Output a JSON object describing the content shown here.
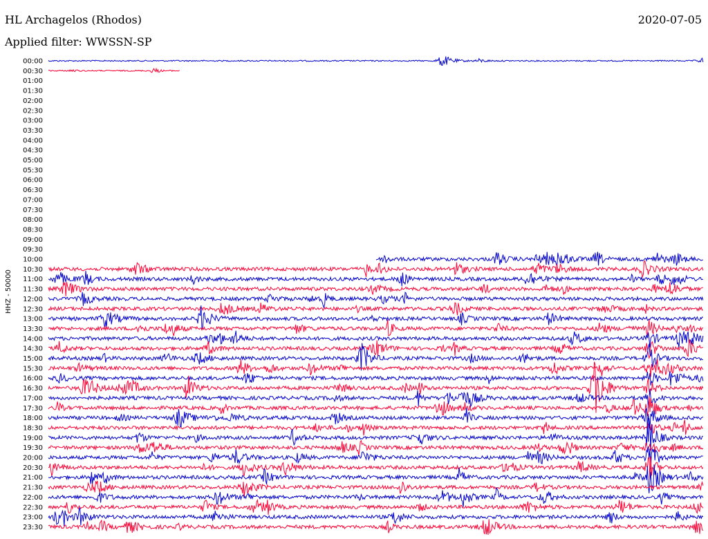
{
  "header": {
    "station": "HL Archagelos (Rhodos)",
    "date": "2020-07-05",
    "filter": "Applied filter: WWSSN-SP"
  },
  "chart_data": {
    "type": "line",
    "title": "HL Archagelos (Rhodos)",
    "channel_label": "HHZ - 50000",
    "tick_labels": [
      "00:00",
      "00:30",
      "01:00",
      "01:30",
      "02:00",
      "02:30",
      "03:00",
      "03:30",
      "04:00",
      "04:30",
      "05:00",
      "05:30",
      "06:00",
      "06:30",
      "07:00",
      "07:30",
      "08:00",
      "08:30",
      "09:00",
      "09:30",
      "10:00",
      "10:30",
      "11:00",
      "11:30",
      "12:00",
      "12:30",
      "13:00",
      "13:30",
      "14:00",
      "14:30",
      "15:00",
      "15:30",
      "16:00",
      "16:30",
      "17:00",
      "17:30",
      "18:00",
      "18:30",
      "19:00",
      "19:30",
      "20:00",
      "20:30",
      "21:00",
      "21:30",
      "22:00",
      "22:30",
      "23:00",
      "23:30"
    ],
    "colors": {
      "even_rows": "#0000cc",
      "odd_rows": "#ff0033"
    },
    "partial_traces": [
      {
        "label": "00:00",
        "start_fraction": 0.0,
        "end_fraction": 1.0
      },
      {
        "label": "00:30",
        "start_fraction": 0.0,
        "end_fraction": 0.2
      },
      {
        "label": "10:00",
        "start_fraction": 0.5,
        "end_fraction": 1.0
      }
    ],
    "events": [
      {
        "time": "00:18",
        "amplitude": "moderate"
      },
      {
        "time": "16:55",
        "amplitude": "very large, multi-row"
      },
      {
        "time": "22:18",
        "amplitude": "moderate"
      },
      {
        "time": "23:50",
        "amplitude": "large"
      }
    ],
    "grid": false
  }
}
